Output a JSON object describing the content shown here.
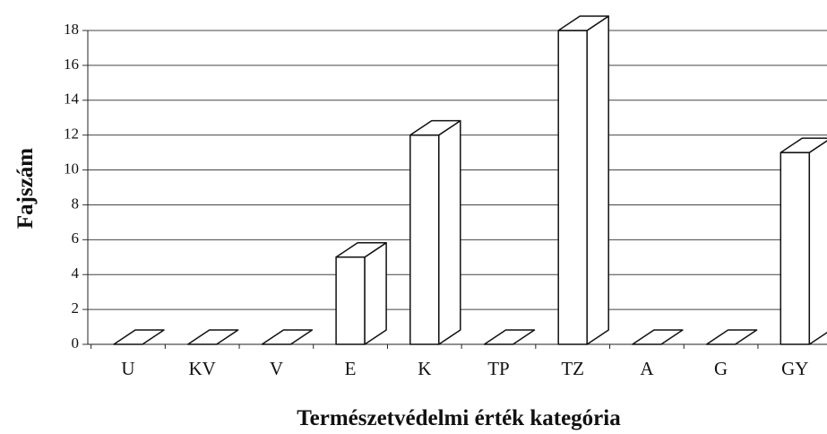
{
  "chart_data": {
    "type": "bar3d",
    "xlabel": "Természetvédelmi érték kategória",
    "ylabel": "Fajszám",
    "categories": [
      "U",
      "KV",
      "V",
      "E",
      "K",
      "TP",
      "TZ",
      "A",
      "G",
      "GY"
    ],
    "values": [
      0,
      0,
      0,
      5,
      12,
      0,
      18,
      0,
      0,
      11
    ],
    "color": "#ffffff",
    "ylim": [
      0,
      18
    ],
    "yticks": [
      0,
      2,
      4,
      6,
      8,
      10,
      12,
      14,
      16,
      18
    ],
    "grid": true
  }
}
